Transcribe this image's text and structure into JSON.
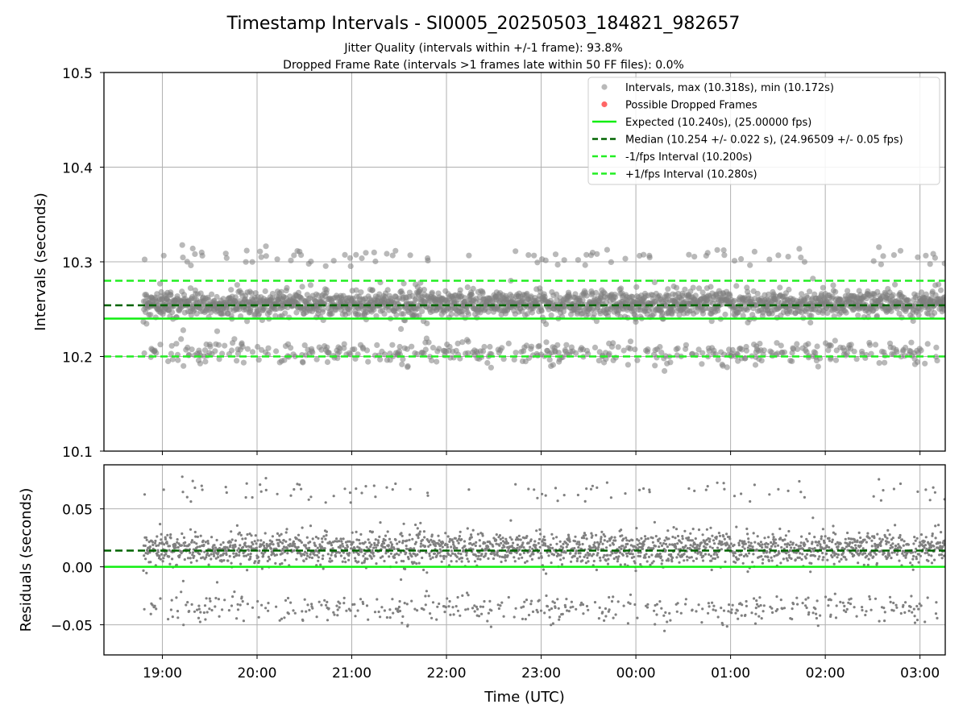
{
  "chart_data": [
    {
      "type": "scatter",
      "title": "Timestamp Intervals - SI0005_20250503_184821_982657",
      "subtitle_lines": [
        "Jitter Quality (intervals within +/-1 frame): 93.8%",
        "Dropped Frame Rate (intervals >1 frames late within 50 FF files): 0.0%"
      ],
      "ylabel": "Intervals (seconds)",
      "xlabel": "",
      "ylim": [
        10.1,
        10.5
      ],
      "yticks": [
        "10.1",
        "10.2",
        "10.3",
        "10.4",
        "10.5"
      ],
      "grid": true,
      "legend_placement": "upper right",
      "legend": [
        "Intervals, max (10.318s), min (10.172s)",
        "Possible Dropped Frames",
        "Expected (10.240s), (25.00000 fps)",
        "Median (10.254 +/- 0.022 s), (24.96509 +/- 0.05 fps)",
        "-1/fps Interval (10.200s)",
        "+1/fps Interval (10.280s)"
      ],
      "reference_lines": {
        "expected": 10.24,
        "median": 10.254,
        "minus_one_fps": 10.2,
        "plus_one_fps": 10.28
      },
      "series": [
        {
          "name": "Intervals, max (10.318s), min (10.172s)",
          "x_range": [
            "18:48",
            "03:16"
          ],
          "clusters": [
            {
              "center": 10.256,
              "spread": 0.007,
              "share": 0.78
            },
            {
              "center": 10.204,
              "spread": 0.006,
              "share": 0.18
            },
            {
              "center": 10.306,
              "spread": 0.005,
              "share": 0.04
            }
          ],
          "max": 10.318,
          "min": 10.172
        },
        {
          "name": "Possible Dropped Frames",
          "count": 0
        }
      ]
    },
    {
      "type": "scatter",
      "xlabel": "Time (UTC)",
      "ylabel": "Residuals (seconds)",
      "ylim": [
        -0.076,
        0.088
      ],
      "yticks": [
        "−0.05",
        "0.00",
        "0.05"
      ],
      "xticks": [
        "19:00",
        "20:00",
        "21:00",
        "22:00",
        "23:00",
        "00:00",
        "01:00",
        "02:00",
        "03:00"
      ],
      "x_axis_range": [
        "18:23",
        "03:16"
      ],
      "grid": true,
      "reference_lines": {
        "zero": 0.0,
        "median_residual": 0.014
      },
      "series": [
        {
          "name": "Residuals",
          "x_range": [
            "18:48",
            "03:16"
          ],
          "clusters": [
            {
              "center": 0.016,
              "spread": 0.007,
              "share": 0.78
            },
            {
              "center": -0.036,
              "spread": 0.006,
              "share": 0.18
            },
            {
              "center": 0.066,
              "spread": 0.005,
              "share": 0.04
            }
          ]
        }
      ]
    }
  ],
  "colors": {
    "points": "#808080",
    "dropped": "#ff5555",
    "expected": "#11ee11",
    "median": "#006400",
    "fps_bounds": "#22ee22",
    "grid": "#b0b0b0",
    "axes": "#000000"
  }
}
